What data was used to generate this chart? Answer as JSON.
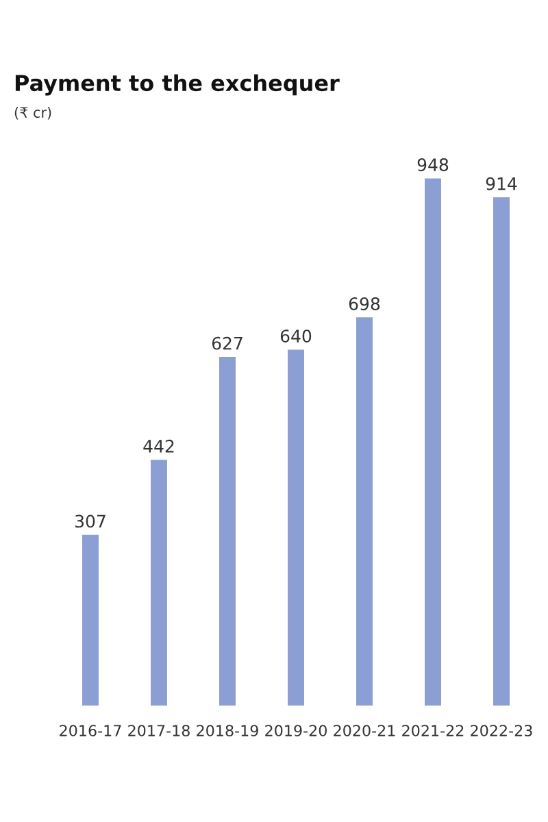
{
  "chart_data": {
    "type": "bar",
    "title": "Payment to the exchequer",
    "subtitle": "(₹ cr)",
    "categories": [
      "2016-17",
      "2017-18",
      "2018-19",
      "2019-20",
      "2020-21",
      "2021-22",
      "2022-23"
    ],
    "values": [
      307,
      442,
      627,
      640,
      698,
      948,
      914
    ],
    "color": "#8c9fd4",
    "data_labels": true,
    "grid": false,
    "legend": false
  }
}
